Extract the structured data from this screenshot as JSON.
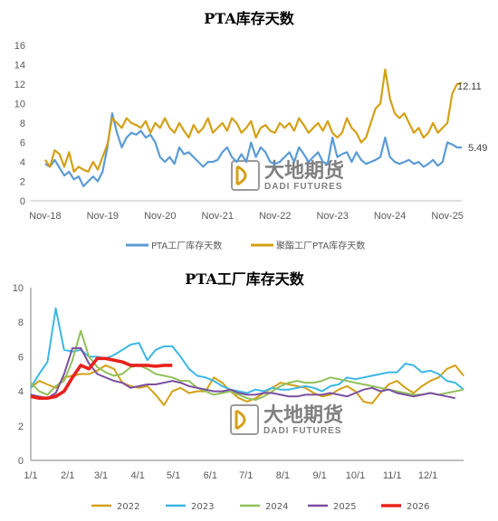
{
  "watermark": {
    "cn": "大地期货",
    "en": "DADI FUTURES"
  },
  "chart_data": [
    {
      "type": "line",
      "title": "PTA库存天数",
      "x_tick_labels": [
        "Nov-18",
        "Nov-19",
        "Nov-20",
        "Nov-21",
        "Nov-22",
        "Nov-23",
        "Nov-24",
        "Nov-25"
      ],
      "ylim": [
        0,
        16
      ],
      "y_ticks": [
        0,
        2,
        4,
        6,
        8,
        10,
        12,
        14,
        16
      ],
      "grid": false,
      "legend": "bottom",
      "end_labels": [
        "12.11",
        "5.49"
      ],
      "series": [
        {
          "name": "PTA工厂库存天数",
          "color": "#5B9BD5",
          "x": [
            "2018-11",
            "2018-12",
            "2019-01",
            "2019-02",
            "2019-03",
            "2019-04",
            "2019-05",
            "2019-06",
            "2019-07",
            "2019-08",
            "2019-09",
            "2019-10",
            "2019-11",
            "2019-12",
            "2020-01",
            "2020-02",
            "2020-03",
            "2020-04",
            "2020-05",
            "2020-06",
            "2020-07",
            "2020-08",
            "2020-09",
            "2020-10",
            "2020-11",
            "2020-12",
            "2021-01",
            "2021-02",
            "2021-03",
            "2021-04",
            "2021-05",
            "2021-06",
            "2021-07",
            "2021-08",
            "2021-09",
            "2021-10",
            "2021-11",
            "2021-12",
            "2022-01",
            "2022-02",
            "2022-03",
            "2022-04",
            "2022-05",
            "2022-06",
            "2022-07",
            "2022-08",
            "2022-09",
            "2022-10",
            "2022-11",
            "2022-12",
            "2023-01",
            "2023-02",
            "2023-03",
            "2023-04",
            "2023-05",
            "2023-06",
            "2023-07",
            "2023-08",
            "2023-09",
            "2023-10",
            "2023-11",
            "2023-12",
            "2024-01",
            "2024-02",
            "2024-03",
            "2024-04",
            "2024-05",
            "2024-06",
            "2024-07",
            "2024-08",
            "2024-09",
            "2024-10",
            "2024-11",
            "2024-12",
            "2025-01",
            "2025-02",
            "2025-03",
            "2025-04",
            "2025-05",
            "2025-06",
            "2025-07",
            "2025-08",
            "2025-09",
            "2025-10",
            "2025-11",
            "2025-12",
            "2026-01",
            "2026-02"
          ],
          "values": [
            3.8,
            3.5,
            4.2,
            3.4,
            2.6,
            3.0,
            2.2,
            2.5,
            1.5,
            2.0,
            2.5,
            2.0,
            3.0,
            5.5,
            9.0,
            7.0,
            5.5,
            6.5,
            7.0,
            6.8,
            7.2,
            6.5,
            6.8,
            6.0,
            4.5,
            4.0,
            4.5,
            3.8,
            5.5,
            4.8,
            5.0,
            4.5,
            4.0,
            3.5,
            4.0,
            4.0,
            4.2,
            5.0,
            5.5,
            4.5,
            4.0,
            4.8,
            4.0,
            6.0,
            4.5,
            5.5,
            5.0,
            4.0,
            3.8,
            4.0,
            4.5,
            5.0,
            4.0,
            5.5,
            4.8,
            4.0,
            4.5,
            5.0,
            4.0,
            3.8,
            6.5,
            4.5,
            4.8,
            5.0,
            4.0,
            5.0,
            4.2,
            3.8,
            4.0,
            4.2,
            4.5,
            6.5,
            4.5,
            4.0,
            3.8,
            4.0,
            4.2,
            3.8,
            4.0,
            3.5,
            3.8,
            4.2,
            3.6,
            4.0,
            6.0,
            5.8,
            5.5,
            5.49
          ]
        },
        {
          "name": "聚酯工厂PTA库存天数",
          "color": "#D4A017",
          "x": [
            "2018-11",
            "2018-12",
            "2019-01",
            "2019-02",
            "2019-03",
            "2019-04",
            "2019-05",
            "2019-06",
            "2019-07",
            "2019-08",
            "2019-09",
            "2019-10",
            "2019-11",
            "2019-12",
            "2020-01",
            "2020-02",
            "2020-03",
            "2020-04",
            "2020-05",
            "2020-06",
            "2020-07",
            "2020-08",
            "2020-09",
            "2020-10",
            "2020-11",
            "2020-12",
            "2021-01",
            "2021-02",
            "2021-03",
            "2021-04",
            "2021-05",
            "2021-06",
            "2021-07",
            "2021-08",
            "2021-09",
            "2021-10",
            "2021-11",
            "2021-12",
            "2022-01",
            "2022-02",
            "2022-03",
            "2022-04",
            "2022-05",
            "2022-06",
            "2022-07",
            "2022-08",
            "2022-09",
            "2022-10",
            "2022-11",
            "2022-12",
            "2023-01",
            "2023-02",
            "2023-03",
            "2023-04",
            "2023-05",
            "2023-06",
            "2023-07",
            "2023-08",
            "2023-09",
            "2023-10",
            "2023-11",
            "2023-12",
            "2024-01",
            "2024-02",
            "2024-03",
            "2024-04",
            "2024-05",
            "2024-06",
            "2024-07",
            "2024-08",
            "2024-09",
            "2024-10",
            "2024-11",
            "2024-12",
            "2025-01",
            "2025-02",
            "2025-03",
            "2025-04",
            "2025-05",
            "2025-06",
            "2025-07",
            "2025-08",
            "2025-09",
            "2025-10",
            "2025-11",
            "2025-12",
            "2026-01",
            "2026-02"
          ],
          "values": [
            4.2,
            3.5,
            5.2,
            4.8,
            3.5,
            5.0,
            3.0,
            3.5,
            3.2,
            3.0,
            4.0,
            3.2,
            4.5,
            5.8,
            8.5,
            8.0,
            7.5,
            8.5,
            8.0,
            7.8,
            7.5,
            8.2,
            7.0,
            8.0,
            7.5,
            8.5,
            7.5,
            7.0,
            8.0,
            7.2,
            6.5,
            7.8,
            7.0,
            7.5,
            8.5,
            7.0,
            7.5,
            8.0,
            7.2,
            8.5,
            8.0,
            7.0,
            7.5,
            8.2,
            6.5,
            7.5,
            7.8,
            7.2,
            7.0,
            8.0,
            7.5,
            8.0,
            7.2,
            8.5,
            7.8,
            7.0,
            7.5,
            8.0,
            7.2,
            8.2,
            7.0,
            6.5,
            7.0,
            8.5,
            7.5,
            7.0,
            6.0,
            6.5,
            8.0,
            9.5,
            10.0,
            13.5,
            10.5,
            9.0,
            8.5,
            9.0,
            8.0,
            7.0,
            7.5,
            6.5,
            7.0,
            8.0,
            7.0,
            7.5,
            8.0,
            11.0,
            12.0,
            12.11
          ]
        }
      ]
    },
    {
      "type": "line",
      "title": "PTA工厂库存天数",
      "x_tick_labels": [
        "1/1",
        "2/1",
        "3/1",
        "4/1",
        "5/1",
        "6/1",
        "7/1",
        "8/1",
        "9/1",
        "10/1",
        "11/1",
        "12/1"
      ],
      "ylim": [
        0,
        10
      ],
      "y_ticks": [
        0,
        2,
        4,
        6,
        8,
        10
      ],
      "grid": false,
      "legend": "bottom",
      "series": [
        {
          "name": "2022",
          "color": "#D4A017",
          "x": [
            1,
            8,
            15,
            22,
            29,
            36,
            43,
            50,
            57,
            64,
            71,
            78,
            85,
            92,
            99,
            106,
            113,
            120,
            127,
            134,
            141,
            148,
            155,
            162,
            169,
            176,
            183,
            190,
            197,
            204,
            211,
            218,
            225,
            232,
            239,
            246,
            253,
            260,
            267,
            274,
            281,
            288,
            295,
            302,
            309,
            316,
            323,
            330,
            337,
            344,
            351,
            358,
            365
          ],
          "values": [
            4.2,
            4.6,
            4.4,
            4.2,
            4.8,
            4.9,
            5.0,
            5.0,
            5.2,
            5.5,
            5.3,
            4.5,
            4.3,
            4.2,
            4.3,
            3.8,
            3.2,
            4.0,
            4.2,
            3.9,
            4.0,
            4.0,
            4.8,
            4.5,
            4.0,
            3.6,
            3.4,
            3.6,
            3.9,
            4.2,
            4.5,
            4.4,
            4.3,
            4.2,
            3.9,
            3.7,
            3.8,
            4.1,
            4.3,
            4.0,
            3.4,
            3.3,
            3.9,
            4.4,
            4.6,
            4.2,
            3.9,
            4.3,
            4.6,
            4.8,
            5.3,
            5.5,
            4.9
          ]
        },
        {
          "name": "2023",
          "color": "#3CB7E4",
          "x": [
            1,
            8,
            15,
            22,
            29,
            36,
            43,
            50,
            57,
            64,
            71,
            78,
            85,
            92,
            99,
            106,
            113,
            120,
            127,
            134,
            141,
            148,
            155,
            162,
            169,
            176,
            183,
            190,
            197,
            204,
            211,
            218,
            225,
            232,
            239,
            246,
            253,
            260,
            267,
            274,
            281,
            288,
            295,
            302,
            309,
            316,
            323,
            330,
            337,
            344,
            351,
            358,
            365
          ],
          "values": [
            4.2,
            5.0,
            5.7,
            8.8,
            6.4,
            6.3,
            6.4,
            6.0,
            6.0,
            5.9,
            6.1,
            6.4,
            6.7,
            6.8,
            5.8,
            6.4,
            6.6,
            6.6,
            6.0,
            5.3,
            4.9,
            4.8,
            4.6,
            4.3,
            4.1,
            4.0,
            3.9,
            4.1,
            4.0,
            4.2,
            4.1,
            4.1,
            4.2,
            4.3,
            4.2,
            4.0,
            4.3,
            4.4,
            4.8,
            4.7,
            4.8,
            4.9,
            5.0,
            5.1,
            5.1,
            5.6,
            5.5,
            5.1,
            5.2,
            5.0,
            4.6,
            4.5,
            4.1
          ]
        },
        {
          "name": "2024",
          "color": "#92C05C",
          "x": [
            1,
            8,
            15,
            22,
            29,
            36,
            43,
            50,
            57,
            64,
            71,
            78,
            85,
            92,
            99,
            106,
            113,
            120,
            127,
            134,
            141,
            148,
            155,
            162,
            169,
            176,
            183,
            190,
            197,
            204,
            211,
            218,
            225,
            232,
            239,
            246,
            253,
            260,
            267,
            274,
            281,
            288,
            295,
            302,
            309,
            316,
            323,
            330,
            337,
            344,
            351,
            358,
            365
          ],
          "values": [
            4.5,
            4.0,
            3.8,
            4.3,
            4.6,
            5.8,
            7.5,
            6.0,
            5.4,
            5.1,
            4.9,
            5.0,
            5.4,
            5.5,
            5.3,
            5.0,
            4.9,
            4.8,
            4.6,
            4.6,
            4.2,
            4.0,
            3.8,
            3.9,
            4.0,
            3.8,
            3.6,
            3.5,
            3.7,
            4.0,
            4.3,
            4.5,
            4.6,
            4.5,
            4.5,
            4.6,
            4.8,
            4.7,
            4.6,
            4.5,
            4.4,
            4.3,
            4.2,
            4.1,
            4.0,
            3.9,
            3.8,
            3.8,
            3.9,
            3.8,
            3.9,
            4.0,
            4.1
          ]
        },
        {
          "name": "2025",
          "color": "#7B4FA0",
          "x": [
            1,
            8,
            15,
            22,
            29,
            36,
            43,
            50,
            57,
            64,
            71,
            78,
            85,
            92,
            99,
            106,
            113,
            120,
            127,
            134,
            141,
            148,
            155,
            162,
            169,
            176,
            183,
            190,
            197,
            204,
            211,
            218,
            225,
            232,
            239,
            246,
            253,
            260,
            267,
            274,
            281,
            288,
            295,
            302,
            309,
            316,
            323,
            330,
            337,
            344,
            351,
            358
          ],
          "values": [
            3.8,
            3.7,
            3.6,
            3.9,
            5.0,
            6.5,
            6.5,
            5.6,
            5.0,
            4.8,
            4.6,
            4.5,
            4.2,
            4.3,
            4.4,
            4.4,
            4.5,
            4.6,
            4.5,
            4.3,
            4.2,
            4.1,
            4.0,
            4.0,
            4.1,
            3.9,
            3.8,
            3.8,
            3.9,
            3.9,
            3.8,
            3.7,
            3.7,
            3.8,
            3.8,
            3.8,
            3.9,
            3.8,
            3.7,
            3.9,
            4.1,
            4.2,
            4.0,
            4.1,
            3.9,
            3.8,
            3.7,
            3.8,
            3.9,
            3.8,
            3.7,
            3.6
          ]
        },
        {
          "name": "2026",
          "color": "#E8211D",
          "x": [
            1,
            8,
            15,
            22,
            29,
            36,
            43,
            50,
            57,
            64,
            71,
            78,
            85,
            92,
            99,
            106,
            113,
            120
          ],
          "values": [
            3.7,
            3.6,
            3.6,
            3.7,
            4.0,
            4.8,
            5.5,
            5.3,
            5.9,
            5.9,
            5.8,
            5.7,
            5.5,
            5.5,
            5.5,
            5.45,
            5.5,
            5.5
          ]
        }
      ]
    }
  ]
}
